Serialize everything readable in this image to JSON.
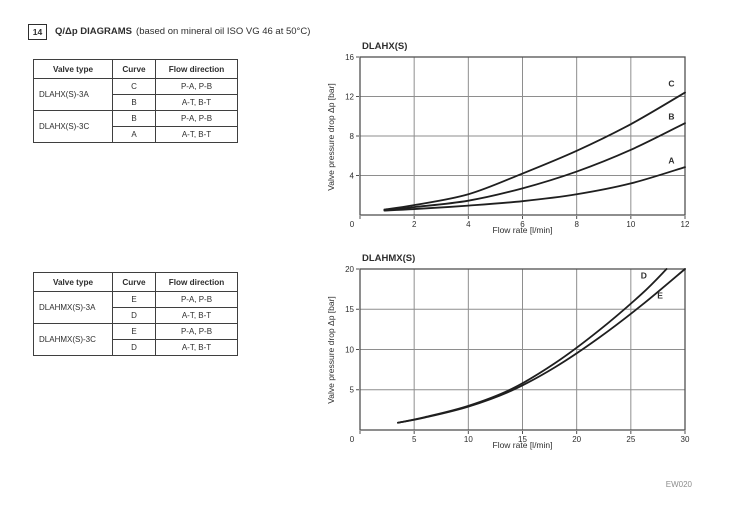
{
  "header": {
    "number": "14",
    "title": "Q/Δp DIAGRAMS",
    "subtitle": "(based on mineral oil ISO VG 46 at 50°C)"
  },
  "colors": {
    "text": "#2e2e2e",
    "table_border": "#3f3f3f",
    "grid_line": "#8e8e8e",
    "plot_frame": "#505050",
    "curve": "#1f1f1f",
    "muted_text": "#8d8d8d",
    "background": "#ffffff"
  },
  "tables": [
    {
      "headers": [
        "Valve type",
        "Curve",
        "Flow direction"
      ],
      "groups": [
        {
          "valve": "DLAHX(S)-3A",
          "rows": [
            {
              "curve": "C",
              "dir": "P-A, P-B"
            },
            {
              "curve": "B",
              "dir": "A-T, B-T"
            }
          ]
        },
        {
          "valve": "DLAHX(S)-3C",
          "rows": [
            {
              "curve": "B",
              "dir": "P-A, P-B"
            },
            {
              "curve": "A",
              "dir": "A-T, B-T"
            }
          ]
        }
      ]
    },
    {
      "headers": [
        "Valve type",
        "Curve",
        "Flow direction"
      ],
      "groups": [
        {
          "valve": "DLAHMX(S)-3A",
          "rows": [
            {
              "curve": "E",
              "dir": "P-A, P-B"
            },
            {
              "curve": "D",
              "dir": "A-T, B-T"
            }
          ]
        },
        {
          "valve": "DLAHMX(S)-3C",
          "rows": [
            {
              "curve": "E",
              "dir": "P-A, P-B"
            },
            {
              "curve": "D",
              "dir": "A-T, B-T"
            }
          ]
        }
      ]
    }
  ],
  "chart_data": [
    {
      "type": "line",
      "title": "DLAHX(S)",
      "xlabel": "Flow rate [l/min]",
      "ylabel": "Valve pressure drop Δp [bar]",
      "xlim": [
        0,
        12
      ],
      "ylim": [
        0,
        16
      ],
      "xticks": [
        0,
        2,
        4,
        6,
        8,
        10,
        12
      ],
      "yticks": [
        4,
        8,
        12,
        16
      ],
      "grid": true,
      "legend_position": "on-curve-right",
      "series": [
        {
          "name": "A",
          "label_xy": [
            11.5,
            5.5
          ],
          "points": [
            [
              0.9,
              0.45
            ],
            [
              2,
              0.6
            ],
            [
              4,
              0.95
            ],
            [
              6,
              1.4
            ],
            [
              8,
              2.1
            ],
            [
              10,
              3.2
            ],
            [
              12,
              4.85
            ]
          ]
        },
        {
          "name": "B",
          "label_xy": [
            11.5,
            10.0
          ],
          "points": [
            [
              0.9,
              0.5
            ],
            [
              2,
              0.8
            ],
            [
              4,
              1.45
            ],
            [
              6,
              2.7
            ],
            [
              8,
              4.4
            ],
            [
              10,
              6.6
            ],
            [
              12,
              9.3
            ]
          ]
        },
        {
          "name": "C",
          "label_xy": [
            11.5,
            13.3
          ],
          "points": [
            [
              0.9,
              0.55
            ],
            [
              2,
              1.0
            ],
            [
              4,
              2.1
            ],
            [
              6,
              4.2
            ],
            [
              8,
              6.5
            ],
            [
              10,
              9.2
            ],
            [
              12,
              12.4
            ]
          ]
        }
      ]
    },
    {
      "type": "line",
      "title": "DLAHMX(S)",
      "xlabel": "Flow rate [l/min]",
      "ylabel": "Valve pressure drop Δp [bar]",
      "xlim": [
        0,
        30
      ],
      "ylim": [
        0,
        20
      ],
      "xticks": [
        0,
        5,
        10,
        15,
        20,
        25,
        30
      ],
      "yticks": [
        5,
        10,
        15,
        20
      ],
      "grid": true,
      "legend_position": "on-curve-right",
      "series": [
        {
          "name": "E",
          "label_xy": [
            27.7,
            16.7
          ],
          "points": [
            [
              3.5,
              0.9
            ],
            [
              6,
              1.55
            ],
            [
              10,
              2.9
            ],
            [
              14,
              4.9
            ],
            [
              18,
              7.8
            ],
            [
              22,
              11.4
            ],
            [
              26,
              15.5
            ],
            [
              30,
              20
            ]
          ]
        },
        {
          "name": "D",
          "label_xy": [
            26.2,
            19.2
          ],
          "points": [
            [
              3.5,
              0.9
            ],
            [
              6,
              1.6
            ],
            [
              10,
              3.0
            ],
            [
              14,
              5.1
            ],
            [
              18,
              8.3
            ],
            [
              22,
              12.3
            ],
            [
              26,
              16.9
            ],
            [
              28.3,
              20
            ]
          ]
        }
      ]
    }
  ],
  "footer": {
    "code": "EW020"
  }
}
